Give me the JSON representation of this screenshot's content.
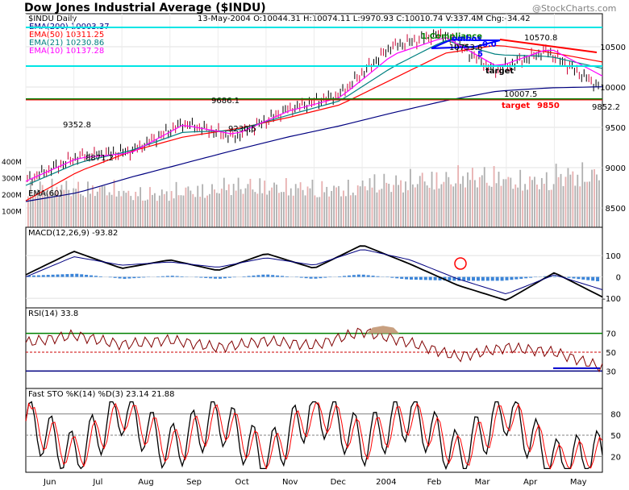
{
  "header": {
    "title": "Dow Jones Industrial Average ($INDU)",
    "watermark": "@StockCharts.com",
    "symbol_line": "$INDU Daily",
    "quote_line": "13-May-2004 O:10044.31 H:10074.11 L:9970.93 C:10010.74 V:337.4M Chg:-34.42"
  },
  "legend": [
    {
      "label": "EMA(200) 10003.37",
      "color": "#000080"
    },
    {
      "label": "EMA(50) 10311.25",
      "color": "#ff0000"
    },
    {
      "label": "EMA(21) 10230.86",
      "color": "#008080"
    },
    {
      "label": "EMA(10) 10137.28",
      "color": "#ff00ff"
    }
  ],
  "colors": {
    "panel_bg": "#f2f2f2",
    "frame": "#000000",
    "resistance": "#00e5e5",
    "support": "#008000",
    "target": "#ff0000",
    "price_up": "#000000",
    "price_down": "#cc0033",
    "volume_up": "#b0b0b0",
    "volume_down": "#e8b0b0",
    "macd_hist": "#3a84d8",
    "rsi_line": "#800000",
    "rsi_fill": "#c8a080",
    "sto_k": "#000000",
    "sto_d": "#ff0000"
  },
  "annotations": {
    "price_labels": [
      "10753.6",
      "10570.8",
      "9686.1",
      "9352.8",
      "9230.5",
      "8871.2",
      "10007.5",
      "9852.2"
    ],
    "target_red": "target",
    "target_value": "9850",
    "target_black": "target",
    "pattern_label": "1.Compliance",
    "pattern_text": "ombos",
    "fib_a": "0.0",
    "fib_b": "5"
  },
  "panels": {
    "price": {
      "ema60_label": "EMA(60)",
      "volume_ticks": [
        "400M",
        "300M",
        "200M",
        "100M"
      ]
    },
    "macd": {
      "label": "MACD(12,26,9) -93.82"
    },
    "rsi": {
      "label": "RSI(14) 33.8"
    },
    "sto": {
      "label": "Fast STO %K(14) %D(3) 23.14 21.88"
    }
  },
  "chart_data": [
    {
      "type": "line",
      "title": "Dow Jones Industrial Average ($INDU)",
      "x_labels": [
        "Jun",
        "Jul",
        "Aug",
        "Sep",
        "Oct",
        "Nov",
        "Dec",
        "2004",
        "Feb",
        "Mar",
        "Apr",
        "May"
      ],
      "y_ticks": [
        8500,
        9000,
        9500,
        10000,
        10500
      ],
      "ylim": [
        8300,
        10800
      ],
      "series": [
        {
          "name": "EMA(200) 10003.37",
          "values": [
            8580,
            8690,
            8880,
            9050,
            9220,
            9380,
            9520,
            9680,
            9830,
            9950,
            9990,
            10003
          ]
        },
        {
          "name": "EMA(50) 10311.25",
          "values": [
            8590,
            8950,
            9200,
            9380,
            9480,
            9620,
            9780,
            10100,
            10420,
            10520,
            10430,
            10311
          ]
        },
        {
          "name": "EMA(21) 10230.86",
          "values": [
            8780,
            9060,
            9210,
            9440,
            9460,
            9650,
            9830,
            10250,
            10580,
            10400,
            10380,
            10231
          ]
        },
        {
          "name": "EMA(10) 10137.28",
          "values": [
            8830,
            9120,
            9180,
            9530,
            9410,
            9700,
            9870,
            10400,
            10620,
            10250,
            10480,
            10137
          ]
        }
      ],
      "close": [
        8850,
        9140,
        9200,
        9550,
        9380,
        9720,
        9900,
        10500,
        10660,
        10200,
        10450,
        10010
      ],
      "lines": {
        "resistance_high": 10740,
        "resistance_mid": 10260,
        "support": 9850
      },
      "volume_ylim": [
        0,
        400
      ],
      "volume_m": [
        250,
        240,
        210,
        230,
        260,
        250,
        240,
        280,
        300,
        320,
        290,
        330
      ]
    },
    {
      "type": "line",
      "title": "MACD(12,26,9) -93.82",
      "y_ticks": [
        100,
        0,
        -100
      ],
      "ylim": [
        -130,
        180
      ],
      "macd": [
        10,
        120,
        40,
        80,
        30,
        110,
        40,
        150,
        60,
        -40,
        -110,
        20,
        -94
      ],
      "signal": [
        0,
        95,
        55,
        70,
        45,
        90,
        55,
        130,
        80,
        -10,
        -80,
        10,
        -60
      ]
    },
    {
      "type": "line",
      "title": "RSI(14) 33.8",
      "y_ticks": [
        70,
        50,
        30
      ],
      "ylim": [
        15,
        85
      ],
      "values": [
        60,
        68,
        58,
        63,
        55,
        62,
        57,
        72,
        60,
        45,
        55,
        50,
        33.8
      ]
    },
    {
      "type": "line",
      "title": "Fast STO %K(14) %D(3) 23.14 21.88",
      "y_ticks": [
        80,
        50,
        20
      ],
      "ylim": [
        0,
        100
      ],
      "k": [
        70,
        20,
        85,
        30,
        75,
        15,
        90,
        40,
        80,
        20,
        85,
        10,
        23.14
      ],
      "d": [
        60,
        30,
        75,
        40,
        65,
        25,
        80,
        50,
        70,
        30,
        75,
        20,
        21.88
      ]
    }
  ]
}
